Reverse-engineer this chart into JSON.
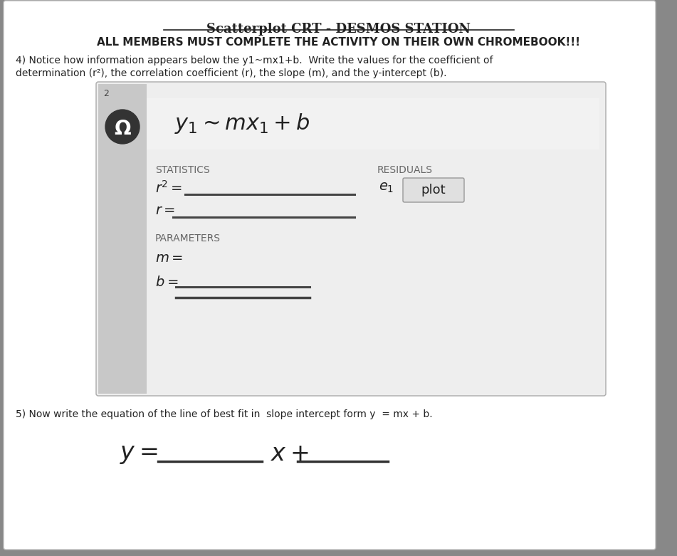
{
  "title_line1": "Scatterplot CRT - DESMOS STATION",
  "title_line2": "ALL MEMBERS MUST COMPLETE THE ACTIVITY ON THEIR OWN CHROMEBOOK!!!",
  "body_text_line1": "4) Notice how information appears below the y1~mx1+b.  Write the values for the coefficient of",
  "body_text_line2": "determination (r²), the correlation coefficient (r), the slope (m), and the y-intercept (b).",
  "stats_label": "STATISTICS",
  "residuals_label": "RESIDUALS",
  "params_label": "PARAMETERS",
  "plot_btn_label": "plot",
  "question5_text": "5) Now write the equation of the line of best fit in  slope intercept form y  = mx + b.",
  "text_color": "#222222",
  "fig_bg": "#888888",
  "paper_color": "#ffffff",
  "sidebar_color": "#c8c8c8",
  "box_bg": "#eeeeee",
  "plot_btn_color": "#e0e0e0",
  "line_color": "#444444",
  "muted_text": "#666666"
}
